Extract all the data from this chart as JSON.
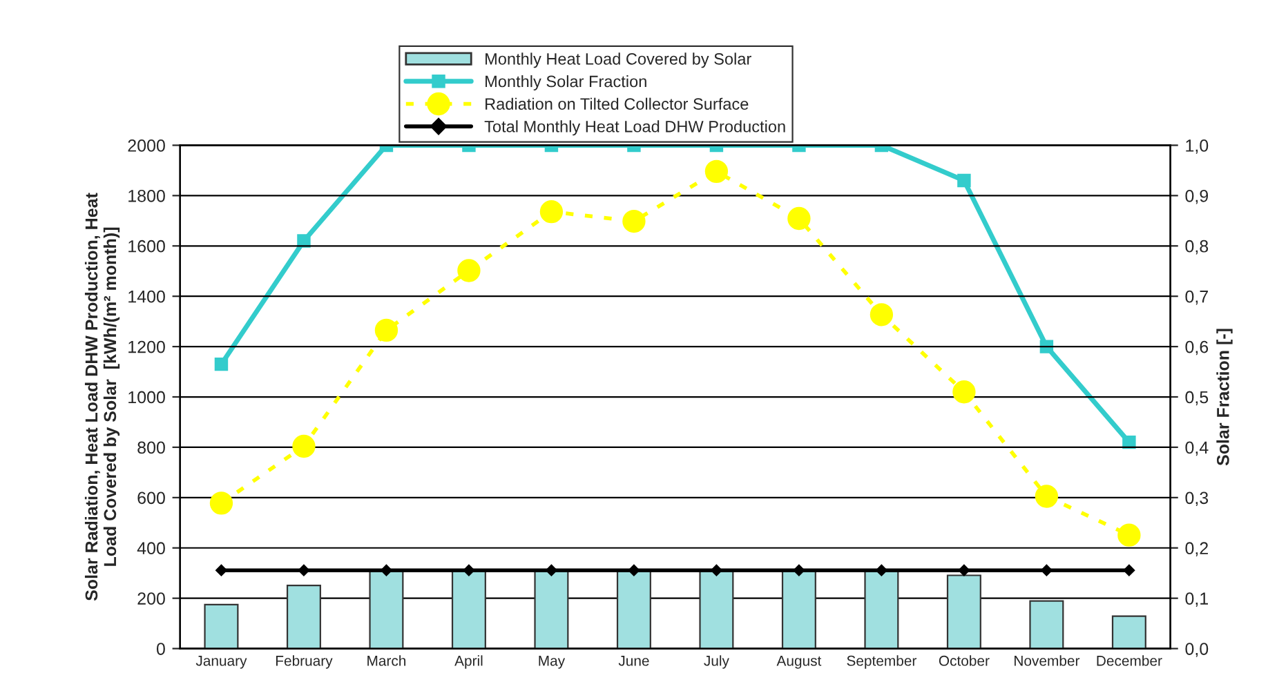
{
  "chart_data": {
    "type": "bar",
    "categories": [
      "January",
      "February",
      "March",
      "April",
      "May",
      "June",
      "July",
      "August",
      "September",
      "October",
      "November",
      "December"
    ],
    "series": [
      {
        "name": "Monthly Heat Load Covered by Solar",
        "color": "#a0e0e0",
        "values": [
          175,
          251,
          311,
          311,
          311,
          311,
          311,
          311,
          311,
          291,
          189,
          129
        ]
      },
      {
        "name": "Monthly Solar Fraction",
        "type": "line",
        "axis": "y2",
        "color": "#33cccc",
        "marker": "square",
        "line_style": "solid",
        "values": [
          0.565,
          0.81,
          1.0,
          1.0,
          1.0,
          1.0,
          1.0,
          1.0,
          1.0,
          0.93,
          0.6,
          0.41
        ]
      },
      {
        "name": "Radiation on Tilted Collector Surface",
        "type": "line",
        "color": "#ffff00",
        "marker": "circle",
        "line_style": "dashed",
        "values": [
          578,
          804,
          1265,
          1502,
          1736,
          1698,
          1896,
          1709,
          1327,
          1020,
          605,
          451
        ]
      },
      {
        "name": "Total Monthly Heat Load DHW Production",
        "type": "line",
        "color": "#000000",
        "marker": "diamond",
        "line_style": "solid",
        "values": [
          311,
          311,
          311,
          311,
          311,
          311,
          311,
          311,
          311,
          311,
          311,
          311
        ]
      }
    ],
    "ylabel": "Solar Radiation, Heat Load DHW Production, Heat\nLoad Covered by Solar  [kWh/(m² month)]",
    "y2label": "Solar Fraction [-]",
    "ylim": [
      0,
      2000
    ],
    "yticks": [
      0,
      200,
      400,
      600,
      800,
      1000,
      1200,
      1400,
      1600,
      1800,
      2000
    ],
    "y2lim": [
      0,
      1.0
    ],
    "y2ticks": [
      {
        "value": 0.0,
        "label": "0,0"
      },
      {
        "value": 0.1,
        "label": "0,1"
      },
      {
        "value": 0.2,
        "label": "0,2"
      },
      {
        "value": 0.3,
        "label": "0,3"
      },
      {
        "value": 0.4,
        "label": "0,4"
      },
      {
        "value": 0.5,
        "label": "0,5"
      },
      {
        "value": 0.6,
        "label": "0,6"
      },
      {
        "value": 0.7,
        "label": "0,7"
      },
      {
        "value": 0.8,
        "label": "0,8"
      },
      {
        "value": 0.9,
        "label": "0,9"
      },
      {
        "value": 1.0,
        "label": "1,0"
      }
    ],
    "grid": "y",
    "legend": "top"
  }
}
